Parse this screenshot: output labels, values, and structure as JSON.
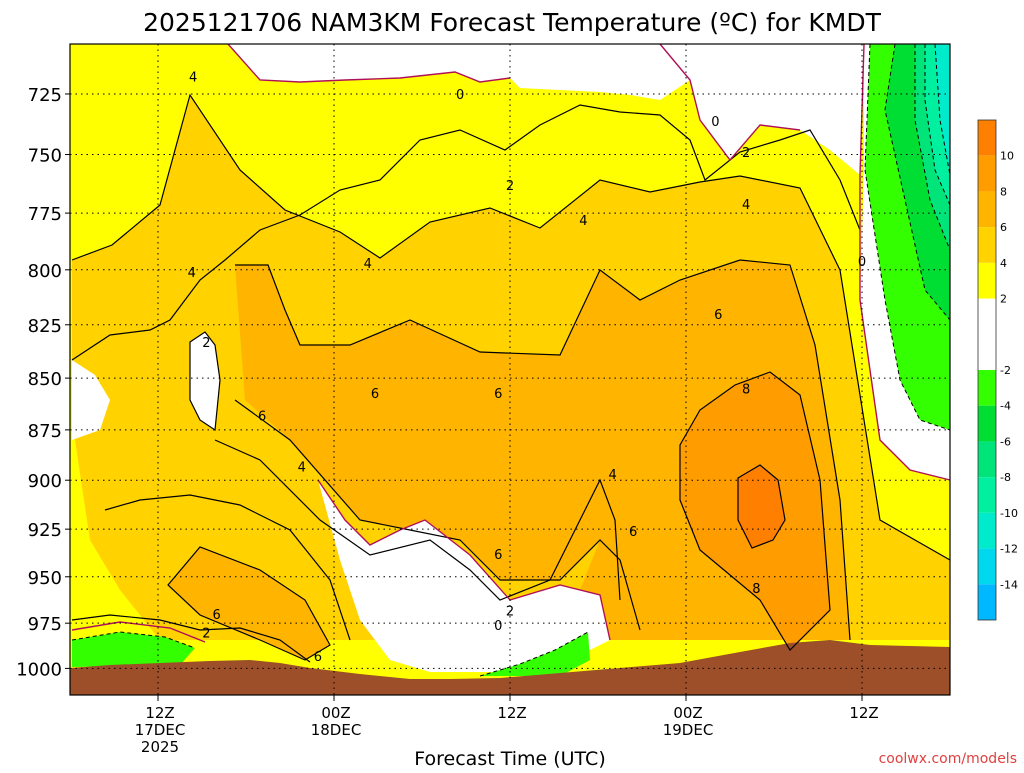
{
  "chart_data": {
    "type": "heatmap",
    "title": "2025121706 NAM3KM Forecast Temperature (ºC) for KMDT",
    "xlabel": "Forecast Time (UTC)",
    "ylabel": "",
    "credit": "coolwx.com/models",
    "y_axis": {
      "unit": "hPa",
      "scale": "log-pressure",
      "range": [
        705,
        1015
      ],
      "ticks": [
        "725",
        "750",
        "775",
        "800",
        "825",
        "850",
        "875",
        "900",
        "925",
        "950",
        "975",
        "1000"
      ]
    },
    "x_axis": {
      "range_hours": [
        0,
        60
      ],
      "ticks": [
        {
          "hour": 6,
          "lines": [
            "12Z",
            "17DEC",
            "2025"
          ]
        },
        {
          "hour": 18,
          "lines": [
            "00Z",
            "18DEC"
          ]
        },
        {
          "hour": 30,
          "lines": [
            "12Z"
          ]
        },
        {
          "hour": 42,
          "lines": [
            "00Z",
            "19DEC"
          ]
        },
        {
          "hour": 54,
          "lines": [
            "12Z"
          ]
        }
      ]
    },
    "grid": true,
    "colorbar": {
      "ticks": [
        "10",
        "8",
        "6",
        "4",
        "2",
        "-2",
        "-4",
        "-6",
        "-8",
        "-10",
        "-12",
        "-14"
      ],
      "bands": [
        {
          "from": 10,
          "to": 12,
          "color": "#ff8000"
        },
        {
          "from": 8,
          "to": 10,
          "color": "#ff9d00"
        },
        {
          "from": 6,
          "to": 8,
          "color": "#ffb400"
        },
        {
          "from": 4,
          "to": 6,
          "color": "#ffd200"
        },
        {
          "from": 2,
          "to": 4,
          "color": "#ffff00"
        },
        {
          "from": -2,
          "to": 2,
          "color": "#ffffff"
        },
        {
          "from": -4,
          "to": -2,
          "color": "#33ff00"
        },
        {
          "from": -6,
          "to": -4,
          "color": "#00dd33"
        },
        {
          "from": -8,
          "to": -6,
          "color": "#00e47a"
        },
        {
          "from": -10,
          "to": -8,
          "color": "#00f0a0"
        },
        {
          "from": -12,
          "to": -10,
          "color": "#00eacc"
        },
        {
          "from": -14,
          "to": -12,
          "color": "#00d8ee"
        },
        {
          "from": -16,
          "to": -14,
          "color": "#00b8ff"
        }
      ]
    },
    "terrain_color": "#9c4f29",
    "contour_labels": [
      {
        "text": "4",
        "hour": 8.4,
        "p": 718
      },
      {
        "text": "4",
        "hour": 8.3,
        "p": 801
      },
      {
        "text": "2",
        "hour": 9.3,
        "p": 833
      },
      {
        "text": "6",
        "hour": 13.1,
        "p": 868
      },
      {
        "text": "4",
        "hour": 15.8,
        "p": 893
      },
      {
        "text": "6",
        "hour": 20.8,
        "p": 857
      },
      {
        "text": "4",
        "hour": 20.3,
        "p": 797
      },
      {
        "text": "0",
        "hour": 26.6,
        "p": 725
      },
      {
        "text": "2",
        "hour": 30.0,
        "p": 763
      },
      {
        "text": "4",
        "hour": 35.0,
        "p": 778
      },
      {
        "text": "6",
        "hour": 29.2,
        "p": 857
      },
      {
        "text": "6",
        "hour": 29.2,
        "p": 938
      },
      {
        "text": "4",
        "hour": 37.0,
        "p": 897
      },
      {
        "text": "6",
        "hour": 38.4,
        "p": 926
      },
      {
        "text": "2",
        "hour": 30.0,
        "p": 968
      },
      {
        "text": "0",
        "hour": 29.2,
        "p": 976
      },
      {
        "text": "6",
        "hour": 10.0,
        "p": 970
      },
      {
        "text": "2",
        "hour": 9.3,
        "p": 980
      },
      {
        "text": "6",
        "hour": 16.9,
        "p": 993
      },
      {
        "text": "0",
        "hour": 44.0,
        "p": 736
      },
      {
        "text": "2",
        "hour": 46.1,
        "p": 749
      },
      {
        "text": "4",
        "hour": 46.1,
        "p": 771
      },
      {
        "text": "6",
        "hour": 44.2,
        "p": 820
      },
      {
        "text": "8",
        "hour": 46.1,
        "p": 855
      },
      {
        "text": "8",
        "hour": 46.8,
        "p": 956
      },
      {
        "text": "0",
        "hour": 54.0,
        "p": 796
      }
    ]
  }
}
